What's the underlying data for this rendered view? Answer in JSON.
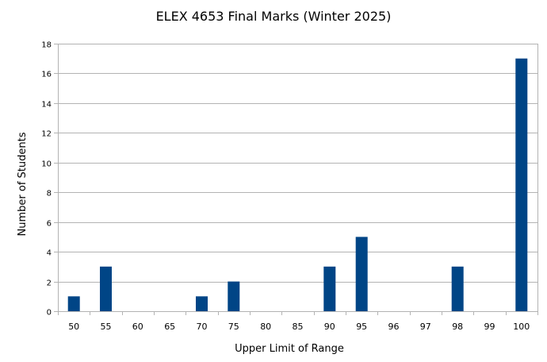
{
  "chart_data": {
    "type": "bar",
    "title": "ELEX 4653 Final Marks (Winter 2025)",
    "xlabel": "Upper Limit of Range",
    "ylabel": "Number of Students",
    "categories": [
      "50",
      "55",
      "60",
      "65",
      "70",
      "75",
      "80",
      "85",
      "90",
      "95",
      "96",
      "97",
      "98",
      "99",
      "100"
    ],
    "values": [
      1,
      3,
      0,
      0,
      1,
      2,
      0,
      0,
      3,
      5,
      0,
      0,
      3,
      0,
      17
    ],
    "ylim": [
      0,
      18
    ],
    "yticks": [
      0,
      2,
      4,
      6,
      8,
      10,
      12,
      14,
      16,
      18
    ],
    "grid": true,
    "legend": "none",
    "colors": {
      "bar": "#004586",
      "grid": "#b3b3b3",
      "axis": "#b3b3b3"
    }
  }
}
